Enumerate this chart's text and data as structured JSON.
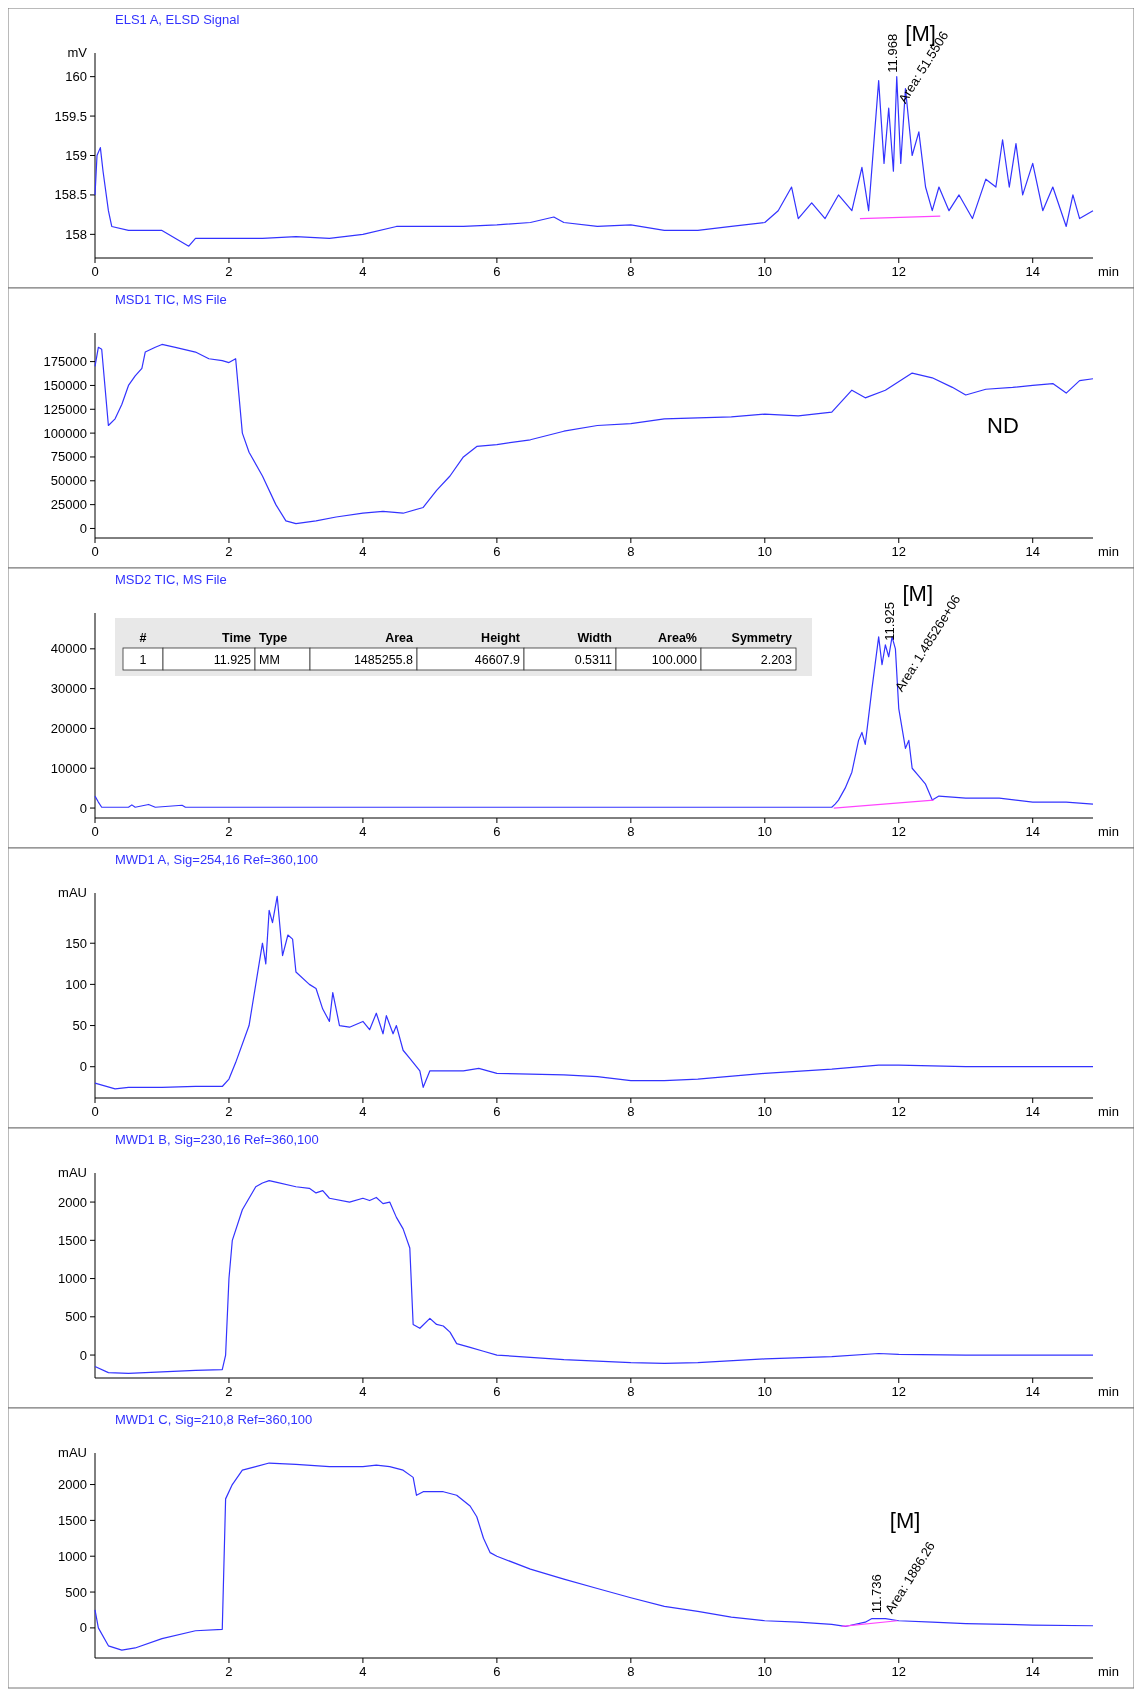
{
  "chart_data": [
    {
      "type": "line",
      "title": "ELS1 A, ELSD Signal",
      "xlabel": "min",
      "ylabel": "mV",
      "xlim": [
        0,
        14.9
      ],
      "xticks": [
        0,
        2,
        4,
        6,
        8,
        10,
        12,
        14
      ],
      "ylim": [
        157.7,
        160.3
      ],
      "yticks": [
        158,
        158.5,
        159,
        159.5,
        160
      ],
      "x": [
        0,
        0.03,
        0.08,
        0.12,
        0.2,
        0.25,
        0.5,
        1,
        1.4,
        1.5,
        2,
        2.5,
        3,
        3.5,
        4,
        4.5,
        5,
        5.5,
        6,
        6.5,
        6.85,
        7,
        7.5,
        8,
        8.5,
        9,
        9.5,
        10,
        10.2,
        10.4,
        10.5,
        10.7,
        10.9,
        11.1,
        11.3,
        11.45,
        11.55,
        11.7,
        11.78,
        11.85,
        11.92,
        11.97,
        12.03,
        12.1,
        12.2,
        12.3,
        12.4,
        12.5,
        12.6,
        12.75,
        12.9,
        13.1,
        13.3,
        13.45,
        13.55,
        13.65,
        13.75,
        13.85,
        14,
        14.15,
        14.3,
        14.5,
        14.6,
        14.7,
        14.9
      ],
      "series": [
        {
          "color": "#3333ff",
          "values": [
            158.5,
            159,
            159.1,
            158.8,
            158.3,
            158.1,
            158.05,
            158.05,
            157.85,
            157.95,
            157.95,
            157.95,
            157.97,
            157.95,
            158,
            158.1,
            158.1,
            158.1,
            158.12,
            158.15,
            158.22,
            158.15,
            158.1,
            158.12,
            158.05,
            158.05,
            158.1,
            158.15,
            158.3,
            158.6,
            158.2,
            158.4,
            158.2,
            158.5,
            158.3,
            158.85,
            158.3,
            159.95,
            158.9,
            159.6,
            158.8,
            160,
            158.9,
            159.85,
            159,
            159.3,
            158.6,
            158.3,
            158.6,
            158.3,
            158.5,
            158.2,
            158.7,
            158.6,
            159.2,
            158.6,
            159.15,
            158.5,
            158.9,
            158.3,
            158.6,
            158.1,
            158.5,
            158.2,
            158.3
          ]
        },
        {
          "type": "line",
          "color": "#ff44ff",
          "x": [
            11.42,
            12.62
          ],
          "values": [
            158.2,
            158.23
          ]
        }
      ],
      "annotations": [
        {
          "text": "11.968",
          "x": 11.968,
          "y": 160
        },
        {
          "text": "Area: 51.5506",
          "x": 12.1,
          "y": 159.6
        },
        "[M]"
      ]
    },
    {
      "type": "line",
      "title": "MSD1 TIC, MS File",
      "xlabel": "min",
      "xlim": [
        0,
        14.9
      ],
      "xticks": [
        0,
        2,
        4,
        6,
        8,
        10,
        12,
        14
      ],
      "ylim": [
        -10000,
        205000
      ],
      "yticks": [
        0,
        25000,
        50000,
        75000,
        100000,
        125000,
        150000,
        175000
      ],
      "x": [
        0,
        0.05,
        0.1,
        0.2,
        0.3,
        0.4,
        0.5,
        0.6,
        0.7,
        0.75,
        0.9,
        1,
        1.2,
        1.5,
        1.7,
        1.9,
        2,
        2.1,
        2.2,
        2.3,
        2.5,
        2.7,
        2.85,
        3,
        3.3,
        3.6,
        4,
        4.3,
        4.6,
        4.9,
        5.1,
        5.3,
        5.5,
        5.7,
        6,
        6.5,
        7,
        7.5,
        8,
        8.5,
        9,
        9.5,
        10,
        10.5,
        11,
        11.3,
        11.5,
        11.8,
        12.2,
        12.5,
        12.8,
        13,
        13.3,
        13.7,
        14,
        14.3,
        14.5,
        14.7,
        14.9
      ],
      "series": [
        {
          "color": "#3333ff",
          "values": [
            170000,
            190000,
            188000,
            108000,
            115000,
            130000,
            150000,
            160000,
            168000,
            185000,
            190000,
            193000,
            190000,
            185000,
            178000,
            176000,
            174000,
            178000,
            100000,
            80000,
            55000,
            25000,
            8000,
            5000,
            8000,
            12000,
            16000,
            18000,
            16000,
            22000,
            40000,
            55000,
            75000,
            86000,
            88000,
            93000,
            102000,
            108000,
            110000,
            115000,
            116000,
            117000,
            120000,
            118000,
            122000,
            145000,
            137000,
            145000,
            163000,
            158000,
            148000,
            140000,
            146000,
            148000,
            150000,
            152000,
            142000,
            155000,
            157000
          ]
        }
      ],
      "annotations": [
        "ND"
      ]
    },
    {
      "type": "line",
      "title": "MSD2 TIC, MS File",
      "xlabel": "min",
      "xlim": [
        0,
        14.9
      ],
      "xticks": [
        0,
        2,
        4,
        6,
        8,
        10,
        12,
        14
      ],
      "ylim": [
        -2500,
        49000
      ],
      "yticks": [
        0,
        10000,
        20000,
        30000,
        40000
      ],
      "x": [
        0,
        0.05,
        0.1,
        0.5,
        0.55,
        0.6,
        0.8,
        0.9,
        1.3,
        1.35,
        2,
        4,
        6,
        8,
        10,
        11,
        11.05,
        11.1,
        11.2,
        11.3,
        11.4,
        11.45,
        11.5,
        11.6,
        11.7,
        11.75,
        11.8,
        11.85,
        11.9,
        11.95,
        12,
        12.1,
        12.15,
        12.2,
        12.3,
        12.4,
        12.5,
        12.6,
        13,
        13.5,
        14,
        14.5,
        14.9
      ],
      "series": [
        {
          "color": "#3333ff",
          "values": [
            3000,
            1500,
            200,
            200,
            800,
            200,
            900,
            200,
            700,
            200,
            200,
            200,
            200,
            200,
            200,
            200,
            1000,
            2000,
            5000,
            9000,
            17000,
            19000,
            16000,
            30000,
            43000,
            36000,
            41000,
            38000,
            43000,
            40000,
            25000,
            15000,
            17000,
            10000,
            8000,
            6000,
            2000,
            3000,
            2500,
            2500,
            1500,
            1500,
            1000
          ]
        },
        {
          "type": "line",
          "color": "#ff44ff",
          "x": [
            11.03,
            12.52
          ],
          "values": [
            0,
            2000
          ]
        }
      ],
      "annotations": [
        {
          "text": "11.925",
          "x": 11.925,
          "y": 41000
        },
        {
          "text": "Area: 1.48526e+06",
          "x": 12.05,
          "y": 28000
        },
        "[M]",
        "#",
        "Time",
        "Type",
        "Area",
        "Height",
        "Width",
        "Area%",
        "Symmetry",
        "1",
        "11.925",
        "MM",
        "1485255.8",
        "46607.9",
        "0.5311",
        "100.000",
        "2.203"
      ]
    },
    {
      "type": "line",
      "title": "MWD1 A, Sig=254,16 Ref=360,100",
      "xlabel": "min",
      "ylabel": "mAU",
      "xlim": [
        0,
        14.9
      ],
      "xticks": [
        0,
        2,
        4,
        6,
        8,
        10,
        12,
        14
      ],
      "ylim": [
        -38,
        211
      ],
      "yticks": [
        0,
        50,
        100,
        150
      ],
      "x": [
        0,
        0.3,
        0.5,
        1,
        1.5,
        1.9,
        2,
        2.1,
        2.3,
        2.4,
        2.5,
        2.55,
        2.6,
        2.65,
        2.72,
        2.8,
        2.88,
        2.95,
        3,
        3.2,
        3.3,
        3.4,
        3.5,
        3.55,
        3.65,
        3.8,
        4,
        4.1,
        4.2,
        4.3,
        4.35,
        4.45,
        4.5,
        4.6,
        4.7,
        4.85,
        4.9,
        5,
        5.1,
        5.3,
        5.5,
        5.73,
        6,
        7,
        7.5,
        8,
        8.5,
        9,
        10,
        11,
        11.7,
        12,
        13,
        14,
        14.9
      ],
      "series": [
        {
          "color": "#3333ff",
          "values": [
            -20,
            -27,
            -25,
            -25,
            -24,
            -24,
            -15,
            5,
            50,
            100,
            150,
            125,
            190,
            175,
            207,
            135,
            160,
            155,
            115,
            100,
            95,
            70,
            55,
            90,
            50,
            48,
            55,
            45,
            65,
            40,
            62,
            40,
            50,
            20,
            10,
            -5,
            -25,
            -5,
            -5,
            -5,
            -5,
            -2,
            -8,
            -10,
            -12,
            -17,
            -17,
            -15,
            -8,
            -3,
            2,
            2,
            0,
            0,
            0
          ]
        }
      ]
    },
    {
      "type": "line",
      "title": "MWD1 B, Sig=230,16 Ref=360,100",
      "xlabel": "min",
      "ylabel": "mAU",
      "xlim": [
        0,
        14.9
      ],
      "xticks": [
        2,
        4,
        6,
        8,
        10,
        12,
        14
      ],
      "ylim": [
        -300,
        2380
      ],
      "yticks": [
        0,
        500,
        1000,
        1500,
        2000
      ],
      "x": [
        0,
        0.2,
        0.5,
        1,
        1.5,
        1.9,
        1.95,
        2,
        2.05,
        2.2,
        2.4,
        2.5,
        2.6,
        2.7,
        3,
        3.2,
        3.3,
        3.4,
        3.5,
        3.8,
        4,
        4.1,
        4.2,
        4.3,
        4.4,
        4.5,
        4.6,
        4.7,
        4.75,
        4.85,
        5,
        5.1,
        5.2,
        5.3,
        5.4,
        5.6,
        5.8,
        6,
        7,
        8,
        8.5,
        9,
        10,
        11,
        11.7,
        12,
        13,
        14,
        14.9
      ],
      "series": [
        {
          "color": "#3333ff",
          "values": [
            -150,
            -230,
            -240,
            -220,
            -200,
            -190,
            0,
            1000,
            1500,
            1900,
            2200,
            2250,
            2280,
            2260,
            2200,
            2180,
            2120,
            2150,
            2050,
            2000,
            2050,
            2020,
            2060,
            1980,
            2000,
            1800,
            1650,
            1400,
            400,
            350,
            480,
            400,
            380,
            300,
            150,
            100,
            50,
            0,
            -60,
            -100,
            -110,
            -100,
            -50,
            -20,
            20,
            10,
            0,
            0,
            0
          ]
        }
      ]
    },
    {
      "type": "line",
      "title": "MWD1 C, Sig=210,8 Ref=360,100",
      "xlabel": "min",
      "ylabel": "mAU",
      "xlim": [
        0,
        14.9
      ],
      "xticks": [
        2,
        4,
        6,
        8,
        10,
        12,
        14
      ],
      "ylim": [
        -420,
        2440
      ],
      "yticks": [
        0,
        500,
        1000,
        1500,
        2000
      ],
      "x": [
        0,
        0.05,
        0.2,
        0.4,
        0.6,
        1,
        1.5,
        1.9,
        1.95,
        2.05,
        2.2,
        2.4,
        2.6,
        3,
        3.5,
        4,
        4.2,
        4.4,
        4.6,
        4.75,
        4.8,
        4.9,
        5,
        5.2,
        5.4,
        5.6,
        5.7,
        5.8,
        5.9,
        6,
        6.5,
        7,
        7.5,
        8,
        8.5,
        9,
        9.5,
        10,
        10.5,
        11,
        11.2,
        11.5,
        11.6,
        11.8,
        12,
        12.5,
        13,
        14,
        14.9
      ],
      "series": [
        {
          "color": "#3333ff",
          "values": [
            250,
            0,
            -250,
            -310,
            -280,
            -150,
            -40,
            -20,
            1800,
            2000,
            2200,
            2250,
            2300,
            2280,
            2250,
            2250,
            2270,
            2250,
            2200,
            2100,
            1850,
            1900,
            1900,
            1900,
            1850,
            1700,
            1550,
            1250,
            1050,
            1000,
            820,
            680,
            550,
            420,
            300,
            230,
            150,
            100,
            80,
            50,
            20,
            80,
            130,
            130,
            100,
            80,
            60,
            40,
            30
          ]
        },
        {
          "type": "line",
          "color": "#ff44ff",
          "x": [
            11.15,
            11.98
          ],
          "values": [
            20,
            100
          ]
        }
      ],
      "annotations": [
        {
          "text": "11.736",
          "x": 11.736,
          "y": 150
        },
        {
          "text": "Area: 1886.26",
          "x": 11.9,
          "y": 130
        },
        "[M]"
      ]
    }
  ]
}
